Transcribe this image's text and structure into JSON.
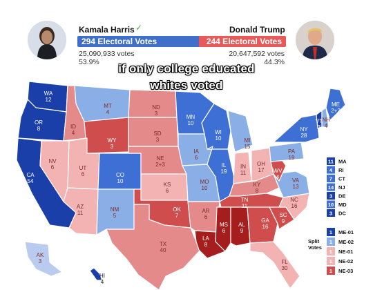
{
  "harris": {
    "name": "Kamala Harris",
    "electoral": "294 Electoral Votes",
    "popular": "25,090,933 votes",
    "pct": "53.9%"
  },
  "trump": {
    "name": "Donald Trump",
    "electoral": "244 Electoral Votes",
    "popular": "20,647,592 votes",
    "pct": "44.3%"
  },
  "caption": {
    "line1": "if only college educated",
    "line2": "whites voted"
  },
  "colors": {
    "safe_dem": "#1b3fa8",
    "likely_dem": "#3d6fd4",
    "lean_dem": "#8aaee6",
    "tilt_dem": "#b9ccef",
    "tilt_rep": "#f3b3b3",
    "lean_rep": "#e48a8a",
    "likely_rep": "#cf4d4d",
    "safe_rep": "#a51d1d"
  },
  "states": [
    {
      "abbr": "WA",
      "ev": "12"
    },
    {
      "abbr": "OR",
      "ev": "8"
    },
    {
      "abbr": "CA",
      "ev": "54"
    },
    {
      "abbr": "ID",
      "ev": "4"
    },
    {
      "abbr": "NV",
      "ev": "6"
    },
    {
      "abbr": "MT",
      "ev": "4"
    },
    {
      "abbr": "WY",
      "ev": "3"
    },
    {
      "abbr": "UT",
      "ev": "6"
    },
    {
      "abbr": "AZ",
      "ev": "11"
    },
    {
      "abbr": "CO",
      "ev": "10"
    },
    {
      "abbr": "NM",
      "ev": "5"
    },
    {
      "abbr": "ND",
      "ev": "3"
    },
    {
      "abbr": "SD",
      "ev": "3"
    },
    {
      "abbr": "NE",
      "ev": "2+3"
    },
    {
      "abbr": "KS",
      "ev": "6"
    },
    {
      "abbr": "OK",
      "ev": "7"
    },
    {
      "abbr": "TX",
      "ev": "40"
    },
    {
      "abbr": "MN",
      "ev": "10"
    },
    {
      "abbr": "IA",
      "ev": "6"
    },
    {
      "abbr": "MO",
      "ev": "10"
    },
    {
      "abbr": "AR",
      "ev": "6"
    },
    {
      "abbr": "LA",
      "ev": "8"
    },
    {
      "abbr": "WI",
      "ev": "10"
    },
    {
      "abbr": "IL",
      "ev": "19"
    },
    {
      "abbr": "MI",
      "ev": "15"
    },
    {
      "abbr": "IN",
      "ev": "11"
    },
    {
      "abbr": "OH",
      "ev": "17"
    },
    {
      "abbr": "KY",
      "ev": "8"
    },
    {
      "abbr": "TN",
      "ev": "11"
    },
    {
      "abbr": "MS",
      "ev": "6"
    },
    {
      "abbr": "AL",
      "ev": "9"
    },
    {
      "abbr": "GA",
      "ev": "16"
    },
    {
      "abbr": "FL",
      "ev": "30"
    },
    {
      "abbr": "SC",
      "ev": "9"
    },
    {
      "abbr": "NC",
      "ev": "16"
    },
    {
      "abbr": "VA",
      "ev": "13"
    },
    {
      "abbr": "WV",
      "ev": "4"
    },
    {
      "abbr": "PA",
      "ev": "19"
    },
    {
      "abbr": "NY",
      "ev": "28"
    },
    {
      "abbr": "VT",
      "ev": "3"
    },
    {
      "abbr": "NH",
      "ev": "4"
    },
    {
      "abbr": "ME",
      "ev": "2+2"
    },
    {
      "abbr": "AK",
      "ev": "3"
    },
    {
      "abbr": "HI",
      "ev": "4"
    }
  ],
  "small_states": [
    {
      "abbr": "MA",
      "ev": "11"
    },
    {
      "abbr": "RI",
      "ev": "4"
    },
    {
      "abbr": "CT",
      "ev": "7"
    },
    {
      "abbr": "NJ",
      "ev": "14"
    },
    {
      "abbr": "DE",
      "ev": "3"
    },
    {
      "abbr": "MD",
      "ev": "10"
    },
    {
      "abbr": "DC",
      "ev": "3"
    }
  ],
  "split_votes": {
    "label_line1": "Split",
    "label_line2": "Votes",
    "items": [
      {
        "name": "ME-01",
        "ev": "1"
      },
      {
        "name": "ME-02",
        "ev": "1"
      },
      {
        "name": "NE-01",
        "ev": "1"
      },
      {
        "name": "NE-02",
        "ev": "1"
      },
      {
        "name": "NE-03",
        "ev": "1"
      }
    ]
  }
}
